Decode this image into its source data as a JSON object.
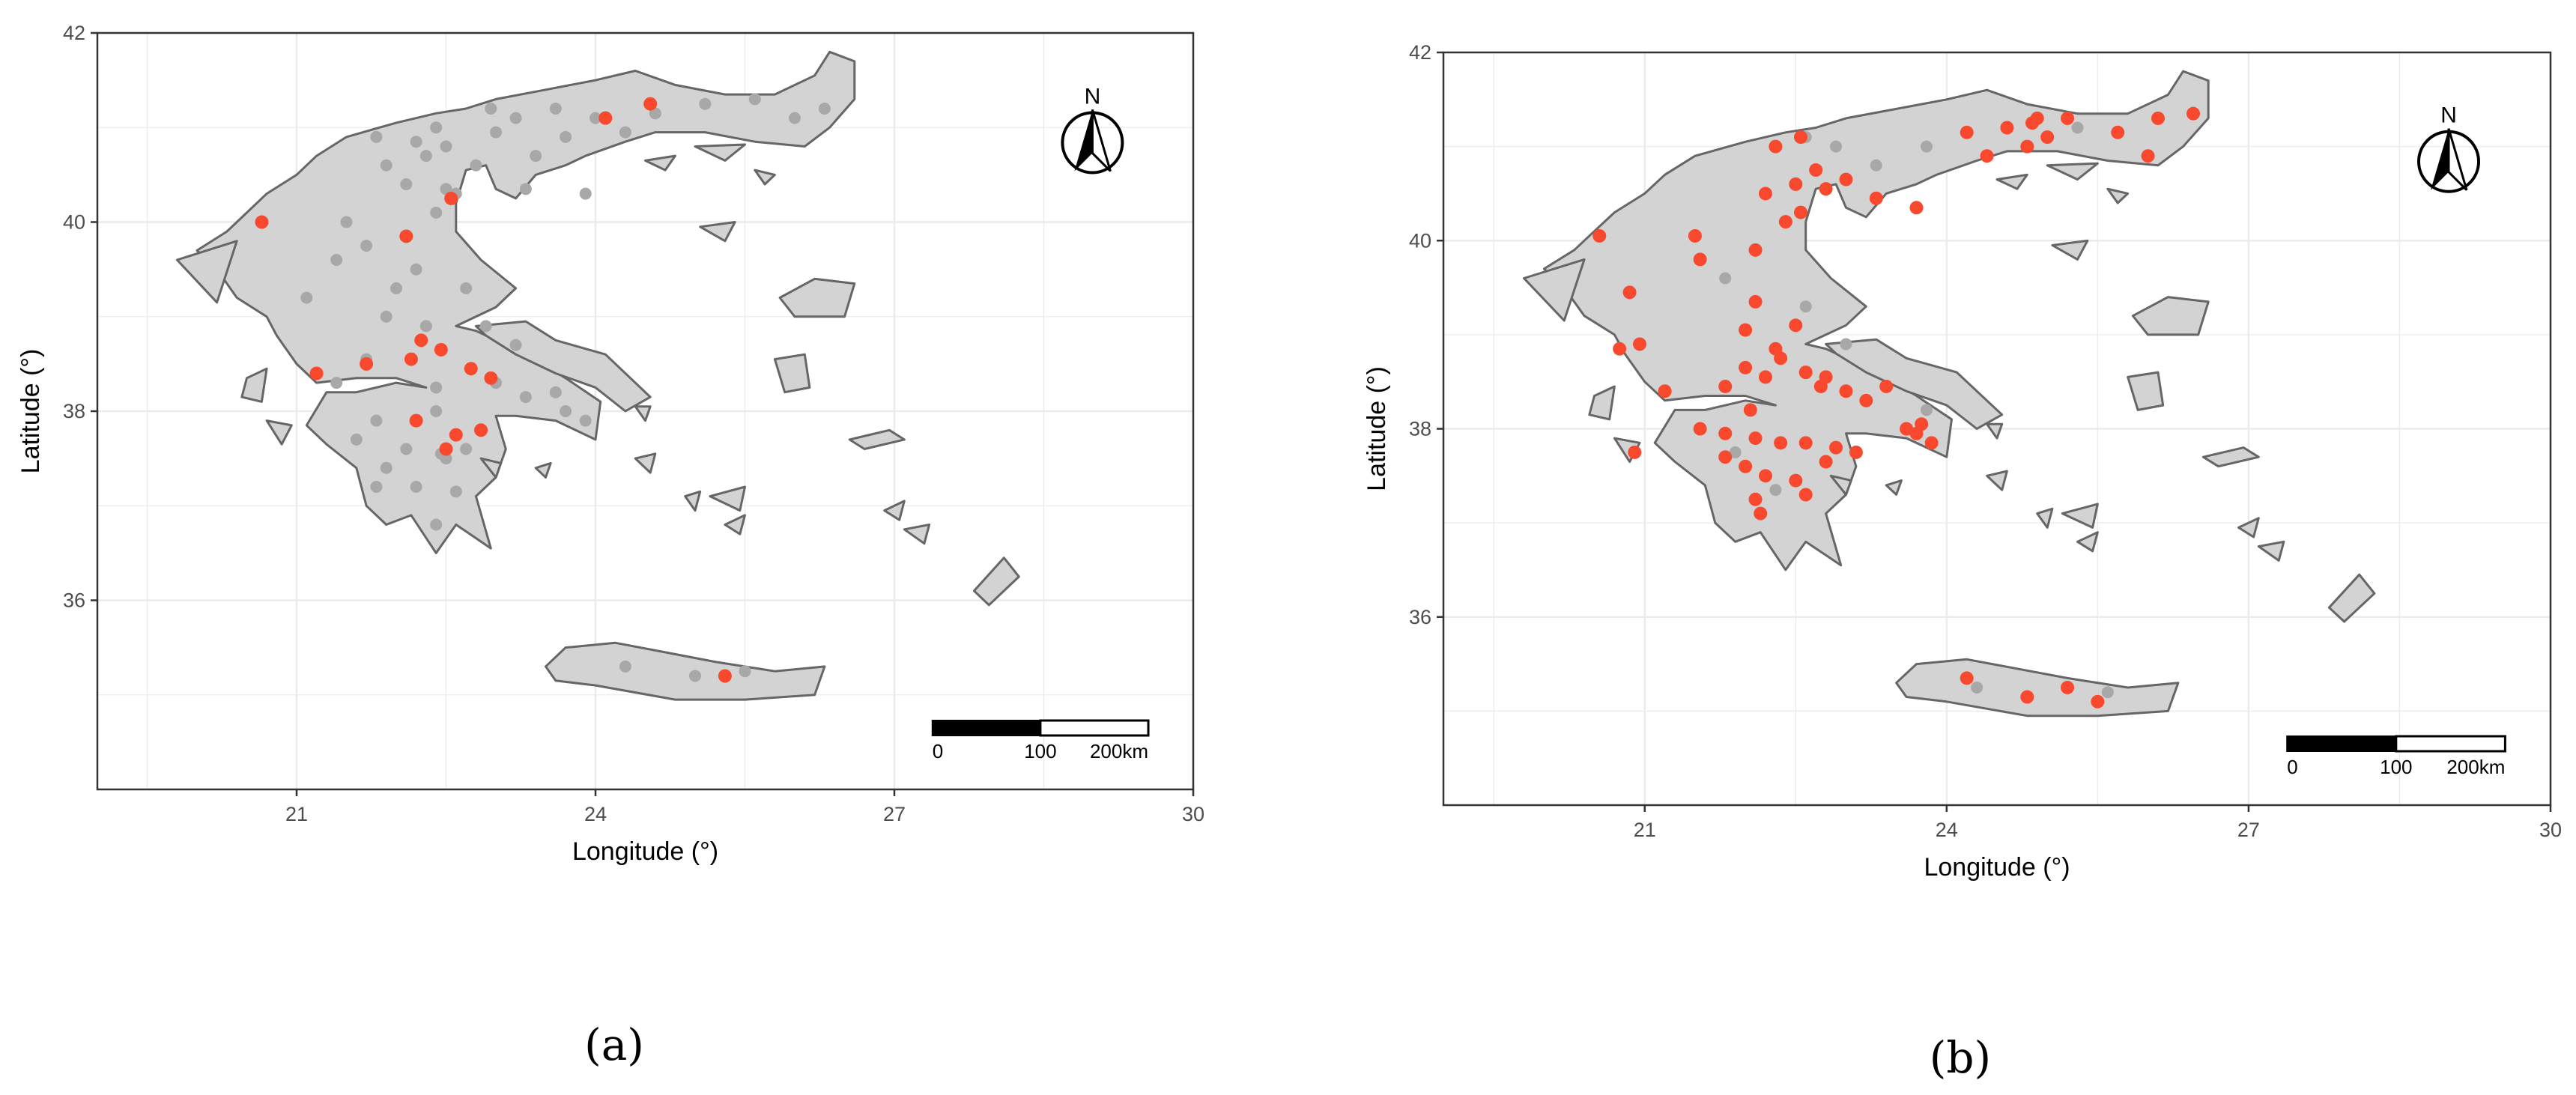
{
  "panels": [
    {
      "id": "a",
      "label": "(a)",
      "xlabel": "Longitude (°)",
      "ylabel": "Latitude (°)",
      "xlim": [
        19.0,
        30.0
      ],
      "ylim": [
        34.0,
        42.0
      ],
      "x_ticks": [
        "21",
        "24",
        "27",
        "30"
      ],
      "y_ticks": [
        "36",
        "38",
        "40",
        "42"
      ],
      "north_label": "N",
      "scale_labels": [
        "0",
        "100",
        "200km"
      ],
      "points_gray": [
        [
          21.7,
          39.75
        ],
        [
          21.4,
          39.6
        ],
        [
          22.2,
          39.5
        ],
        [
          22.7,
          39.3
        ],
        [
          22.0,
          39.3
        ],
        [
          21.1,
          39.2
        ],
        [
          21.9,
          39.0
        ],
        [
          22.3,
          38.9
        ],
        [
          23.2,
          38.7
        ],
        [
          21.5,
          40.0
        ],
        [
          22.4,
          40.1
        ],
        [
          22.6,
          40.3
        ],
        [
          22.1,
          40.4
        ],
        [
          21.9,
          40.6
        ],
        [
          22.3,
          40.7
        ],
        [
          22.2,
          40.85
        ],
        [
          22.4,
          41.0
        ],
        [
          21.8,
          40.9
        ],
        [
          22.8,
          40.6
        ],
        [
          23.4,
          40.7
        ],
        [
          23.7,
          40.9
        ],
        [
          23.2,
          41.1
        ],
        [
          23.6,
          41.2
        ],
        [
          24.0,
          41.1
        ],
        [
          24.6,
          41.15
        ],
        [
          25.1,
          41.25
        ],
        [
          25.6,
          41.3
        ],
        [
          26.0,
          41.1
        ],
        [
          26.3,
          41.2
        ],
        [
          23.0,
          40.95
        ],
        [
          22.95,
          41.2
        ],
        [
          22.5,
          40.8
        ],
        [
          24.3,
          40.95
        ],
        [
          23.9,
          40.3
        ],
        [
          23.3,
          40.35
        ],
        [
          22.5,
          40.35
        ],
        [
          22.4,
          38.0
        ],
        [
          21.8,
          37.9
        ],
        [
          21.6,
          37.7
        ],
        [
          22.1,
          37.6
        ],
        [
          21.9,
          37.4
        ],
        [
          22.2,
          37.2
        ],
        [
          22.5,
          37.5
        ],
        [
          22.6,
          37.15
        ],
        [
          22.4,
          36.8
        ],
        [
          21.8,
          37.2
        ],
        [
          22.4,
          38.25
        ],
        [
          23.0,
          38.3
        ],
        [
          23.3,
          38.15
        ],
        [
          23.7,
          38.0
        ],
        [
          23.9,
          37.9
        ],
        [
          23.6,
          38.2
        ],
        [
          21.4,
          38.3
        ],
        [
          21.7,
          38.55
        ],
        [
          22.9,
          38.9
        ],
        [
          22.45,
          37.55
        ],
        [
          22.7,
          37.6
        ],
        [
          25.0,
          35.2
        ],
        [
          25.5,
          35.25
        ],
        [
          24.3,
          35.3
        ]
      ],
      "points_red": [
        [
          20.65,
          40.0
        ],
        [
          22.55,
          40.25
        ],
        [
          22.1,
          39.85
        ],
        [
          24.1,
          41.1
        ],
        [
          24.55,
          41.25
        ],
        [
          21.2,
          38.4
        ],
        [
          21.7,
          38.5
        ],
        [
          22.15,
          38.55
        ],
        [
          22.25,
          38.75
        ],
        [
          22.45,
          38.65
        ],
        [
          22.75,
          38.45
        ],
        [
          22.95,
          38.35
        ],
        [
          22.2,
          37.9
        ],
        [
          22.6,
          37.75
        ],
        [
          22.85,
          37.8
        ],
        [
          22.5,
          37.6
        ],
        [
          25.3,
          35.2
        ]
      ]
    },
    {
      "id": "b",
      "label": "(b)",
      "xlabel": "Longitude (°)",
      "ylabel": "Latitude (°)",
      "xlim": [
        19.0,
        30.0
      ],
      "ylim": [
        34.0,
        42.0
      ],
      "x_ticks": [
        "21",
        "24",
        "27",
        "30"
      ],
      "y_ticks": [
        "36",
        "38",
        "40",
        "42"
      ],
      "north_label": "N",
      "scale_labels": [
        "0",
        "100",
        "200km"
      ],
      "points_gray": [
        [
          23.3,
          40.8
        ],
        [
          23.8,
          41.0
        ],
        [
          22.9,
          41.0
        ],
        [
          22.6,
          41.1
        ],
        [
          25.3,
          41.2
        ],
        [
          21.8,
          39.6
        ],
        [
          22.6,
          39.3
        ],
        [
          23.0,
          38.9
        ],
        [
          22.3,
          37.35
        ],
        [
          21.9,
          37.75
        ],
        [
          25.6,
          35.2
        ],
        [
          22.2,
          38.55
        ],
        [
          23.8,
          38.2
        ],
        [
          24.3,
          35.25
        ]
      ],
      "points_red": [
        [
          24.2,
          41.15
        ],
        [
          24.6,
          41.2
        ],
        [
          24.85,
          41.25
        ],
        [
          25.0,
          41.1
        ],
        [
          24.9,
          41.3
        ],
        [
          25.2,
          41.3
        ],
        [
          25.7,
          41.15
        ],
        [
          26.1,
          41.3
        ],
        [
          26.45,
          41.35
        ],
        [
          26.0,
          40.9
        ],
        [
          24.8,
          41.0
        ],
        [
          24.4,
          40.9
        ],
        [
          23.3,
          40.45
        ],
        [
          23.7,
          40.35
        ],
        [
          22.3,
          41.0
        ],
        [
          22.55,
          41.1
        ],
        [
          22.7,
          40.75
        ],
        [
          22.5,
          40.6
        ],
        [
          22.8,
          40.55
        ],
        [
          23.0,
          40.65
        ],
        [
          22.2,
          40.5
        ],
        [
          22.55,
          40.3
        ],
        [
          22.4,
          40.2
        ],
        [
          22.1,
          39.9
        ],
        [
          21.5,
          40.05
        ],
        [
          21.55,
          39.8
        ],
        [
          20.55,
          40.05
        ],
        [
          20.85,
          39.45
        ],
        [
          20.95,
          38.9
        ],
        [
          20.75,
          38.85
        ],
        [
          21.2,
          38.4
        ],
        [
          21.8,
          38.45
        ],
        [
          22.0,
          38.65
        ],
        [
          22.2,
          38.55
        ],
        [
          22.35,
          38.75
        ],
        [
          22.6,
          38.6
        ],
        [
          22.8,
          38.55
        ],
        [
          22.3,
          38.85
        ],
        [
          22.5,
          39.1
        ],
        [
          22.1,
          39.35
        ],
        [
          22.0,
          39.05
        ],
        [
          22.75,
          38.45
        ],
        [
          23.0,
          38.4
        ],
        [
          23.2,
          38.3
        ],
        [
          23.4,
          38.45
        ],
        [
          21.55,
          38.0
        ],
        [
          21.8,
          37.95
        ],
        [
          22.1,
          37.9
        ],
        [
          22.35,
          37.85
        ],
        [
          22.6,
          37.85
        ],
        [
          22.9,
          37.8
        ],
        [
          23.1,
          37.75
        ],
        [
          23.6,
          38.0
        ],
        [
          23.75,
          38.05
        ],
        [
          23.7,
          37.95
        ],
        [
          23.85,
          37.85
        ],
        [
          21.8,
          37.7
        ],
        [
          22.0,
          37.6
        ],
        [
          22.2,
          37.5
        ],
        [
          22.5,
          37.45
        ],
        [
          22.1,
          37.25
        ],
        [
          22.15,
          37.1
        ],
        [
          22.6,
          37.3
        ],
        [
          22.8,
          37.65
        ],
        [
          20.9,
          37.75
        ],
        [
          22.05,
          38.2
        ],
        [
          24.2,
          35.35
        ],
        [
          24.8,
          35.15
        ],
        [
          25.2,
          35.25
        ],
        [
          25.5,
          35.1
        ]
      ]
    }
  ],
  "colors": {
    "land": "#d3d3d3",
    "coast": "#666666",
    "grid": "#ebebeb",
    "frame": "#333333",
    "point_red": "#f8492e",
    "point_gray": "#a8a8a8"
  }
}
